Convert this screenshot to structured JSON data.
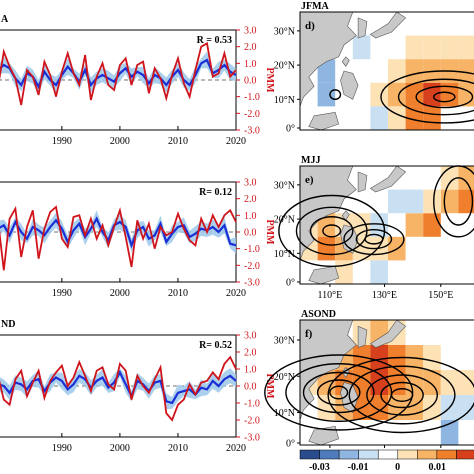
{
  "chart_data": [
    {
      "type": "line",
      "panel": "a",
      "label": "A",
      "correlation": "R = 0.53",
      "x_ticks": [
        "1990",
        "2000",
        "2010",
        "2020"
      ],
      "xlim": [
        1979,
        2020
      ],
      "right_axis_label": "PMM",
      "right_ticks": [
        "3.0",
        "2.0",
        "1.0",
        "0.0",
        "-1.0",
        "-2.0",
        "-3.0"
      ],
      "ylim": [
        -3,
        3
      ],
      "x": [
        1979,
        1980,
        1981,
        1982,
        1983,
        1984,
        1985,
        1986,
        1987,
        1988,
        1989,
        1990,
        1991,
        1992,
        1993,
        1994,
        1995,
        1996,
        1997,
        1998,
        1999,
        2000,
        2001,
        2002,
        2003,
        2004,
        2005,
        2006,
        2007,
        2008,
        2009,
        2010,
        2011,
        2012,
        2013,
        2014,
        2015,
        2016,
        2017,
        2018,
        2019,
        2020
      ],
      "series": [
        {
          "color": "#1a2fd6",
          "values": [
            0.6,
            0.9,
            0.7,
            0.1,
            -0.3,
            0.4,
            0.2,
            -0.4,
            0.5,
            0.0,
            -0.3,
            0.3,
            0.8,
            0.4,
            -0.1,
            0.6,
            -0.3,
            0.1,
            0.3,
            0.1,
            -0.1,
            0.4,
            0.7,
            0.2,
            0.5,
            0.3,
            -0.2,
            0.3,
            0.1,
            -0.3,
            0.2,
            0.6,
            0.0,
            -0.3,
            0.3,
            1.0,
            1.2,
            0.4,
            0.6,
            0.9,
            0.5,
            0.3
          ]
        },
        {
          "color": "#d0141b",
          "values": [
            -0.4,
            1.7,
            0.8,
            0.1,
            -1.5,
            0.6,
            0.2,
            -0.9,
            1.1,
            0.3,
            -1.0,
            0.5,
            1.6,
            0.4,
            -0.3,
            1.5,
            -1.2,
            0.2,
            1.0,
            -0.3,
            -0.6,
            0.9,
            1.3,
            -0.3,
            0.9,
            1.1,
            -0.8,
            0.7,
            0.1,
            -1.1,
            0.3,
            1.3,
            -0.2,
            -1.0,
            0.6,
            2.0,
            2.2,
            0.2,
            0.4,
            1.6,
            0.2,
            0.6
          ]
        }
      ]
    },
    {
      "type": "line",
      "panel": "b",
      "correlation": "R= 0.12",
      "x_ticks": [
        "1990",
        "2000",
        "2010",
        "2020"
      ],
      "xlim": [
        1979,
        2020
      ],
      "right_axis_label": "PMM",
      "right_ticks": [
        "3.0",
        "2.0",
        "1.0",
        "0.0",
        "-1.0",
        "-2.0",
        "-3.0"
      ],
      "ylim": [
        -3,
        3
      ],
      "x": [
        1979,
        1980,
        1981,
        1982,
        1983,
        1984,
        1985,
        1986,
        1987,
        1988,
        1989,
        1990,
        1991,
        1992,
        1993,
        1994,
        1995,
        1996,
        1997,
        1998,
        1999,
        2000,
        2001,
        2002,
        2003,
        2004,
        2005,
        2006,
        2007,
        2008,
        2009,
        2010,
        2011,
        2012,
        2013,
        2014,
        2015,
        2016,
        2017,
        2018,
        2019,
        2020
      ],
      "series": [
        {
          "color": "#1a2fd6",
          "values": [
            0.2,
            0.4,
            -0.2,
            0.6,
            0.0,
            -0.4,
            0.3,
            0.1,
            -0.2,
            0.3,
            0.7,
            0.2,
            -0.6,
            0.1,
            0.5,
            -0.3,
            0.2,
            0.8,
            0.0,
            -0.5,
            0.4,
            0.6,
            0.3,
            -0.8,
            0.1,
            0.3,
            -0.4,
            -0.2,
            0.5,
            -0.6,
            -0.1,
            0.3,
            0.4,
            -0.3,
            -0.1,
            0.2,
            0.1,
            0.3,
            0.0,
            0.4,
            -0.7,
            -0.8
          ]
        },
        {
          "color": "#d0141b",
          "values": [
            0.7,
            -2.3,
            0.8,
            1.4,
            -1.5,
            0.3,
            1.3,
            -1.6,
            0.2,
            1.2,
            1.5,
            -0.4,
            -0.9,
            0.9,
            1.0,
            -0.2,
            0.8,
            -0.4,
            0.4,
            -0.8,
            0.3,
            1.3,
            -0.3,
            -2.1,
            0.7,
            -0.4,
            0.5,
            -1.0,
            0.3,
            -0.2,
            0.0,
            1.1,
            0.2,
            -0.5,
            -0.8,
            0.8,
            0.0,
            1.0,
            0.3,
            1.0,
            1.3,
            0.6
          ]
        }
      ]
    },
    {
      "type": "line",
      "panel": "c",
      "label": "ND",
      "correlation": "R= 0.52",
      "x_ticks": [
        "1990",
        "2000",
        "2010",
        "2020"
      ],
      "xlim": [
        1979,
        2020
      ],
      "right_axis_label": "PMM",
      "right_ticks": [
        "3.0",
        "2.0",
        "1.0",
        "0.0",
        "-1.0",
        "-2.0",
        "-3.0"
      ],
      "ylim": [
        -3,
        3
      ],
      "x": [
        1979,
        1980,
        1981,
        1982,
        1983,
        1984,
        1985,
        1986,
        1987,
        1988,
        1989,
        1990,
        1991,
        1992,
        1993,
        1994,
        1995,
        1996,
        1997,
        1998,
        1999,
        2000,
        2001,
        2002,
        2003,
        2004,
        2005,
        2006,
        2007,
        2008,
        2009,
        2010,
        2011,
        2012,
        2013,
        2014,
        2015,
        2016,
        2017,
        2018,
        2019,
        2020
      ],
      "series": [
        {
          "color": "#1a2fd6",
          "values": [
            0.1,
            0.0,
            -0.4,
            0.2,
            0.1,
            -0.2,
            0.3,
            0.4,
            -0.3,
            0.2,
            0.5,
            0.3,
            -0.2,
            0.1,
            0.6,
            0.4,
            -0.1,
            0.3,
            0.5,
            -0.1,
            0.2,
            0.8,
            0.1,
            -0.6,
            0.3,
            0.1,
            -0.3,
            0.2,
            0.3,
            -0.9,
            -1.0,
            -0.4,
            -0.3,
            -0.2,
            -0.5,
            -0.1,
            -0.2,
            0.3,
            0.0,
            0.4,
            0.6,
            0.3
          ]
        },
        {
          "color": "#d0141b",
          "values": [
            0.6,
            -0.8,
            -1.1,
            0.4,
            0.9,
            -0.6,
            0.2,
            0.9,
            -0.7,
            0.3,
            0.8,
            1.2,
            0.0,
            0.5,
            1.4,
            0.6,
            -0.3,
            0.9,
            1.1,
            0.1,
            -0.2,
            1.3,
            0.9,
            -0.8,
            0.6,
            0.0,
            -0.4,
            0.4,
            1.1,
            -1.6,
            -2.0,
            -1.1,
            -0.8,
            0.1,
            -0.5,
            0.2,
            0.3,
            0.8,
            0.4,
            1.3,
            1.7,
            1.0
          ]
        }
      ]
    },
    {
      "type": "heatmap",
      "panel": "d",
      "label": "JFMA",
      "lat_ticks": [
        "30°N",
        "20°N",
        "10°N",
        "0°"
      ],
      "lon_ticks": []
    },
    {
      "type": "heatmap",
      "panel": "e",
      "label": "MJJ",
      "lat_ticks": [
        "30°N",
        "20°N",
        "10°N",
        "0°"
      ],
      "lon_ticks": [
        "110°E",
        "130°E",
        "150°E"
      ]
    },
    {
      "type": "heatmap",
      "panel": "f",
      "label": "ASOND",
      "lat_ticks": [
        "30°N",
        "20°N",
        "10°N",
        "0°"
      ],
      "lon_ticks": [
        "110°E",
        "130°E",
        "150°E"
      ]
    }
  ],
  "colorbar": {
    "tick_labels": [
      "-0.03",
      "-0.01",
      "0",
      "0.01"
    ],
    "colors": [
      "#2a4c8c",
      "#4f7bbd",
      "#8fb6e0",
      "#c9e0f2",
      "#ffffff",
      "#fde2b6",
      "#f8b466",
      "#ef7f2c",
      "#d6401d"
    ]
  },
  "colors": {
    "land": "#c8c8c8",
    "ocean": "#ffffff",
    "blue_line": "#1a2fd6",
    "red_line": "#d0141b",
    "shade": "#9cc8ea"
  }
}
